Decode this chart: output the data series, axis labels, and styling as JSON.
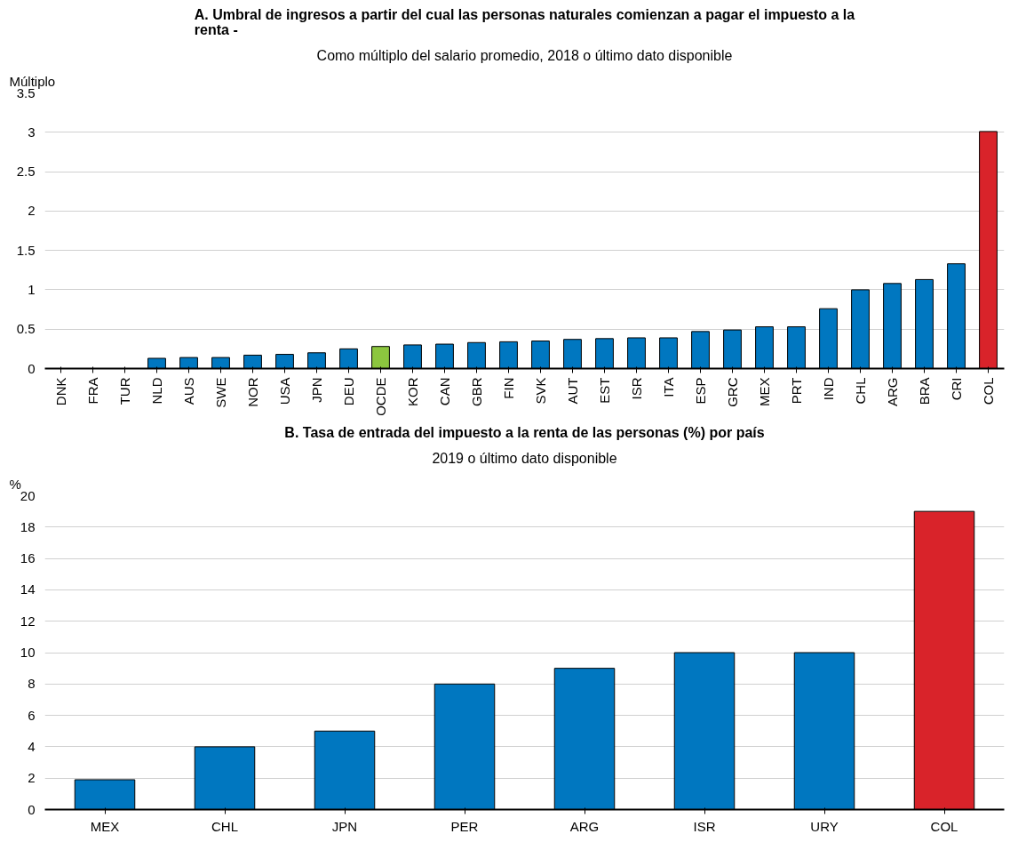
{
  "chart_data": [
    {
      "type": "bar",
      "title": "A. Umbral de ingresos a partir del cual las personas naturales comienzan a pagar el impuesto a la renta -",
      "subtitle": "Como múltiplo del salario promedio, 2018 o último dato disponible",
      "ylabel": "Múltiplo",
      "categories": [
        "DNK",
        "FRA",
        "TUR",
        "NLD",
        "AUS",
        "SWE",
        "NOR",
        "USA",
        "JPN",
        "DEU",
        "OCDE",
        "KOR",
        "CAN",
        "GBR",
        "FIN",
        "SVK",
        "AUT",
        "EST",
        "ISR",
        "ITA",
        "ESP",
        "GRC",
        "MEX",
        "PRT",
        "IND",
        "CHL",
        "ARG",
        "BRA",
        "CRI",
        "COL"
      ],
      "values": [
        0,
        0,
        0,
        0.13,
        0.14,
        0.14,
        0.17,
        0.18,
        0.2,
        0.25,
        0.28,
        0.3,
        0.31,
        0.33,
        0.34,
        0.35,
        0.37,
        0.38,
        0.39,
        0.39,
        0.47,
        0.49,
        0.53,
        0.53,
        0.76,
        1.0,
        1.08,
        1.13,
        1.33,
        3.01
      ],
      "colors": [
        "#0077c0",
        "#0077c0",
        "#0077c0",
        "#0077c0",
        "#0077c0",
        "#0077c0",
        "#0077c0",
        "#0077c0",
        "#0077c0",
        "#0077c0",
        "#8cc63f",
        "#0077c0",
        "#0077c0",
        "#0077c0",
        "#0077c0",
        "#0077c0",
        "#0077c0",
        "#0077c0",
        "#0077c0",
        "#0077c0",
        "#0077c0",
        "#0077c0",
        "#0077c0",
        "#0077c0",
        "#0077c0",
        "#0077c0",
        "#0077c0",
        "#0077c0",
        "#0077c0",
        "#d9232a"
      ],
      "ylim": [
        0,
        3.5
      ],
      "yticks": [
        0,
        0.5,
        1,
        1.5,
        2,
        2.5,
        3,
        3.5
      ],
      "grid": "y"
    },
    {
      "type": "bar",
      "title": "B. Tasa de entrada del impuesto a la renta de las personas (%) por país",
      "subtitle": "2019 o último dato disponible",
      "ylabel": "%",
      "categories": [
        "MEX",
        "CHL",
        "JPN",
        "PER",
        "ARG",
        "ISR",
        "URY",
        "COL"
      ],
      "values": [
        1.9,
        4,
        5,
        8,
        9,
        10,
        10,
        19
      ],
      "colors": [
        "#0077c0",
        "#0077c0",
        "#0077c0",
        "#0077c0",
        "#0077c0",
        "#0077c0",
        "#0077c0",
        "#d9232a"
      ],
      "ylim": [
        0,
        20
      ],
      "yticks": [
        0,
        2,
        4,
        6,
        8,
        10,
        12,
        14,
        16,
        18,
        20
      ],
      "grid": "y"
    }
  ]
}
